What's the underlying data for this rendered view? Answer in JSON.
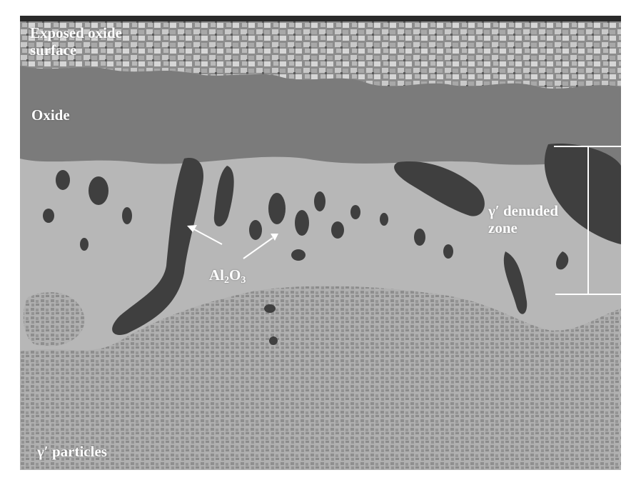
{
  "labels": {
    "exposed_oxide_line1": "Exposed oxide",
    "exposed_oxide_line2": "surface",
    "oxide": "Oxide",
    "al2o3_main": "Al",
    "al2o3_sub1": "2",
    "al2o3_mid": "O",
    "al2o3_sub2": "3",
    "denuded_line1": "γ′ denuded",
    "denuded_line2": "zone",
    "particles": "γ′ particles"
  },
  "colors": {
    "annotation": "#ffffff",
    "oxide_layer": "#7a7a7a",
    "denuded_zone": "#b7b7b7",
    "alumina": "#3e3e3e",
    "surface": "#9a9a9a"
  }
}
